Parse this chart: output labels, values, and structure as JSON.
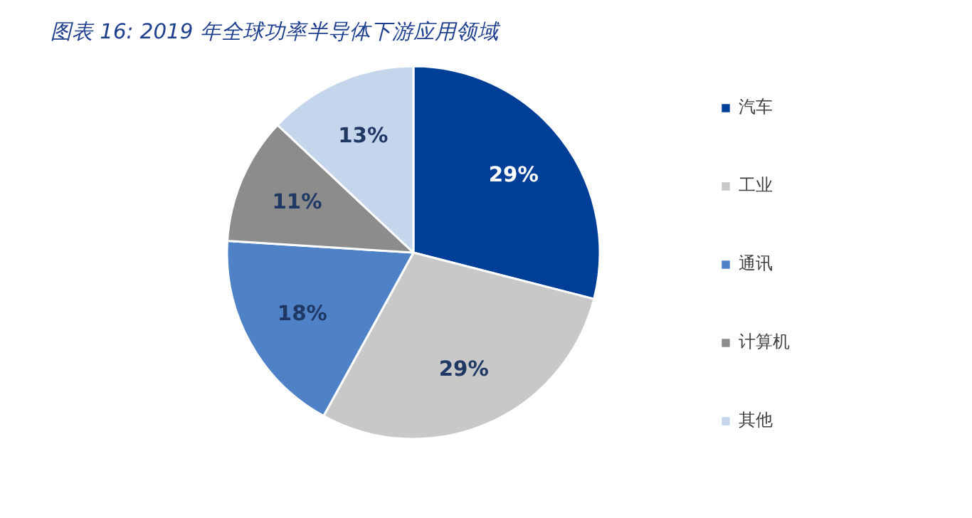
{
  "chart_data": {
    "type": "pie",
    "title": "图表 16:  2019 年全球功率半导体下游应用领域",
    "categories": [
      "汽车",
      "工业",
      "通讯",
      "计算机",
      "其他"
    ],
    "values": [
      29,
      29,
      18,
      11,
      13
    ],
    "colors": [
      "#003f98",
      "#c8c8c8",
      "#4f81c7",
      "#8c8c8c",
      "#c5d5ec"
    ],
    "value_labels": [
      "29%",
      "29%",
      "18%",
      "11%",
      "13%"
    ],
    "legend": "right"
  }
}
